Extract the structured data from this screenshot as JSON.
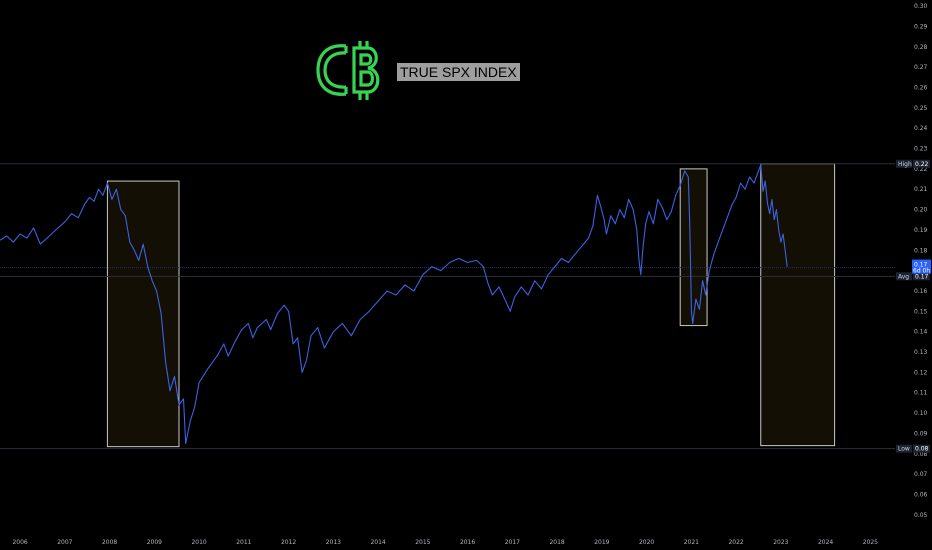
{
  "logo": {
    "text": "C₿",
    "name": "cb-logo"
  },
  "title": "TRUE SPX INDEX",
  "colors": {
    "background": "#000000",
    "line": "#3a63e0",
    "box_stroke": "#c8c8c8",
    "box_fill": "#140f05",
    "logo_green": "#39d353",
    "guide": "#2a2f3a",
    "label_bg": "#1c2433"
  },
  "chart_data": {
    "type": "line",
    "title": "",
    "xlabel": "",
    "ylabel": "",
    "x_ticks": [
      "2006",
      "2007",
      "2008",
      "2009",
      "2010",
      "2011",
      "2012",
      "2013",
      "2014",
      "2015",
      "2016",
      "2017",
      "2018",
      "2019",
      "2020",
      "2021",
      "2022",
      "2023",
      "2024",
      "2025"
    ],
    "y_ticks": [
      "0.30",
      "0.29",
      "0.28",
      "0.27",
      "0.26",
      "0.25",
      "0.24",
      "0.23",
      "0.22",
      "0.21",
      "0.20",
      "0.19",
      "0.18",
      "0.17",
      "0.16",
      "0.15",
      "0.14",
      "0.13",
      "0.12",
      "0.11",
      "0.10",
      "0.09",
      "0.08",
      "0.07",
      "0.06",
      "0.05"
    ],
    "xlim": [
      2005.55,
      2025.55
    ],
    "ylim": [
      0.045,
      0.302
    ],
    "series": [
      {
        "values": [
          [
            2005.55,
            0.185
          ],
          [
            2005.7,
            0.187
          ],
          [
            2005.85,
            0.184
          ],
          [
            2006.0,
            0.188
          ],
          [
            2006.15,
            0.186
          ],
          [
            2006.3,
            0.191
          ],
          [
            2006.45,
            0.183
          ],
          [
            2006.6,
            0.186
          ],
          [
            2006.8,
            0.19
          ],
          [
            2007.0,
            0.194
          ],
          [
            2007.15,
            0.198
          ],
          [
            2007.3,
            0.196
          ],
          [
            2007.45,
            0.203
          ],
          [
            2007.55,
            0.206
          ],
          [
            2007.65,
            0.204
          ],
          [
            2007.75,
            0.21
          ],
          [
            2007.85,
            0.207
          ],
          [
            2007.95,
            0.213
          ],
          [
            2008.05,
            0.205
          ],
          [
            2008.15,
            0.21
          ],
          [
            2008.25,
            0.2
          ],
          [
            2008.35,
            0.197
          ],
          [
            2008.45,
            0.184
          ],
          [
            2008.55,
            0.18
          ],
          [
            2008.65,
            0.175
          ],
          [
            2008.75,
            0.183
          ],
          [
            2008.85,
            0.172
          ],
          [
            2008.95,
            0.165
          ],
          [
            2009.05,
            0.16
          ],
          [
            2009.15,
            0.149
          ],
          [
            2009.25,
            0.125
          ],
          [
            2009.35,
            0.111
          ],
          [
            2009.45,
            0.118
          ],
          [
            2009.55,
            0.104
          ],
          [
            2009.65,
            0.107
          ],
          [
            2009.7,
            0.085
          ],
          [
            2009.8,
            0.096
          ],
          [
            2009.9,
            0.103
          ],
          [
            2010.0,
            0.115
          ],
          [
            2010.2,
            0.122
          ],
          [
            2010.4,
            0.128
          ],
          [
            2010.55,
            0.134
          ],
          [
            2010.65,
            0.128
          ],
          [
            2010.8,
            0.135
          ],
          [
            2010.95,
            0.141
          ],
          [
            2011.1,
            0.144
          ],
          [
            2011.2,
            0.137
          ],
          [
            2011.3,
            0.142
          ],
          [
            2011.5,
            0.146
          ],
          [
            2011.6,
            0.141
          ],
          [
            2011.75,
            0.149
          ],
          [
            2011.9,
            0.153
          ],
          [
            2012.0,
            0.15
          ],
          [
            2012.1,
            0.134
          ],
          [
            2012.2,
            0.137
          ],
          [
            2012.3,
            0.12
          ],
          [
            2012.4,
            0.126
          ],
          [
            2012.5,
            0.138
          ],
          [
            2012.65,
            0.142
          ],
          [
            2012.8,
            0.132
          ],
          [
            2013.0,
            0.14
          ],
          [
            2013.2,
            0.144
          ],
          [
            2013.4,
            0.138
          ],
          [
            2013.6,
            0.146
          ],
          [
            2013.8,
            0.15
          ],
          [
            2014.0,
            0.155
          ],
          [
            2014.2,
            0.16
          ],
          [
            2014.4,
            0.158
          ],
          [
            2014.6,
            0.163
          ],
          [
            2014.8,
            0.16
          ],
          [
            2015.0,
            0.168
          ],
          [
            2015.2,
            0.172
          ],
          [
            2015.4,
            0.17
          ],
          [
            2015.6,
            0.174
          ],
          [
            2015.8,
            0.176
          ],
          [
            2016.0,
            0.174
          ],
          [
            2016.2,
            0.175
          ],
          [
            2016.35,
            0.172
          ],
          [
            2016.45,
            0.164
          ],
          [
            2016.55,
            0.158
          ],
          [
            2016.7,
            0.162
          ],
          [
            2016.85,
            0.155
          ],
          [
            2016.95,
            0.15
          ],
          [
            2017.05,
            0.157
          ],
          [
            2017.2,
            0.162
          ],
          [
            2017.35,
            0.158
          ],
          [
            2017.5,
            0.165
          ],
          [
            2017.65,
            0.161
          ],
          [
            2017.8,
            0.168
          ],
          [
            2017.95,
            0.172
          ],
          [
            2018.1,
            0.176
          ],
          [
            2018.25,
            0.174
          ],
          [
            2018.4,
            0.178
          ],
          [
            2018.55,
            0.182
          ],
          [
            2018.7,
            0.186
          ],
          [
            2018.8,
            0.192
          ],
          [
            2018.9,
            0.207
          ],
          [
            2018.98,
            0.201
          ],
          [
            2019.05,
            0.195
          ],
          [
            2019.1,
            0.188
          ],
          [
            2019.2,
            0.197
          ],
          [
            2019.3,
            0.193
          ],
          [
            2019.4,
            0.2
          ],
          [
            2019.5,
            0.196
          ],
          [
            2019.6,
            0.205
          ],
          [
            2019.7,
            0.2
          ],
          [
            2019.78,
            0.19
          ],
          [
            2019.83,
            0.175
          ],
          [
            2019.87,
            0.168
          ],
          [
            2019.92,
            0.182
          ],
          [
            2019.98,
            0.193
          ],
          [
            2020.05,
            0.199
          ],
          [
            2020.15,
            0.193
          ],
          [
            2020.25,
            0.205
          ],
          [
            2020.35,
            0.201
          ],
          [
            2020.45,
            0.195
          ],
          [
            2020.55,
            0.199
          ],
          [
            2020.65,
            0.207
          ],
          [
            2020.75,
            0.212
          ],
          [
            2020.85,
            0.219
          ],
          [
            2020.93,
            0.216
          ],
          [
            2020.96,
            0.195
          ],
          [
            2020.98,
            0.175
          ],
          [
            2021.0,
            0.15
          ],
          [
            2021.03,
            0.144
          ],
          [
            2021.1,
            0.156
          ],
          [
            2021.18,
            0.151
          ],
          [
            2021.25,
            0.165
          ],
          [
            2021.32,
            0.158
          ],
          [
            2021.4,
            0.17
          ],
          [
            2021.5,
            0.178
          ],
          [
            2021.6,
            0.184
          ],
          [
            2021.7,
            0.19
          ],
          [
            2021.8,
            0.196
          ],
          [
            2021.9,
            0.202
          ],
          [
            2022.0,
            0.206
          ],
          [
            2022.1,
            0.213
          ],
          [
            2022.2,
            0.21
          ],
          [
            2022.3,
            0.216
          ],
          [
            2022.4,
            0.213
          ],
          [
            2022.5,
            0.219
          ],
          [
            2022.55,
            0.222
          ],
          [
            2022.6,
            0.209
          ],
          [
            2022.65,
            0.214
          ],
          [
            2022.7,
            0.203
          ],
          [
            2022.75,
            0.198
          ],
          [
            2022.8,
            0.205
          ],
          [
            2022.85,
            0.195
          ],
          [
            2022.9,
            0.2
          ],
          [
            2022.95,
            0.19
          ],
          [
            2023.0,
            0.184
          ],
          [
            2023.05,
            0.188
          ],
          [
            2023.1,
            0.179
          ],
          [
            2023.14,
            0.172
          ]
        ]
      }
    ],
    "horizontal_lines": [
      {
        "label": "High",
        "value_text": "0.22",
        "value": 0.2225
      },
      {
        "label": "Avg",
        "value_text": "0.17",
        "value": 0.1672
      },
      {
        "label": "Low",
        "value_text": "0.08",
        "value": 0.0825
      }
    ],
    "current_value": {
      "value_text": "0.17",
      "sub_text": "6d 0h",
      "value": 0.1715
    },
    "highlight_boxes": [
      {
        "x0": 2007.95,
        "x1": 2009.55,
        "y0": 0.0835,
        "y1": 0.214
      },
      {
        "x0": 2020.75,
        "x1": 2021.35,
        "y0": 0.143,
        "y1": 0.22
      },
      {
        "x0": 2022.55,
        "x1": 2024.2,
        "y0": 0.084,
        "y1": 0.2225
      }
    ],
    "grid": false,
    "legend": "none"
  }
}
